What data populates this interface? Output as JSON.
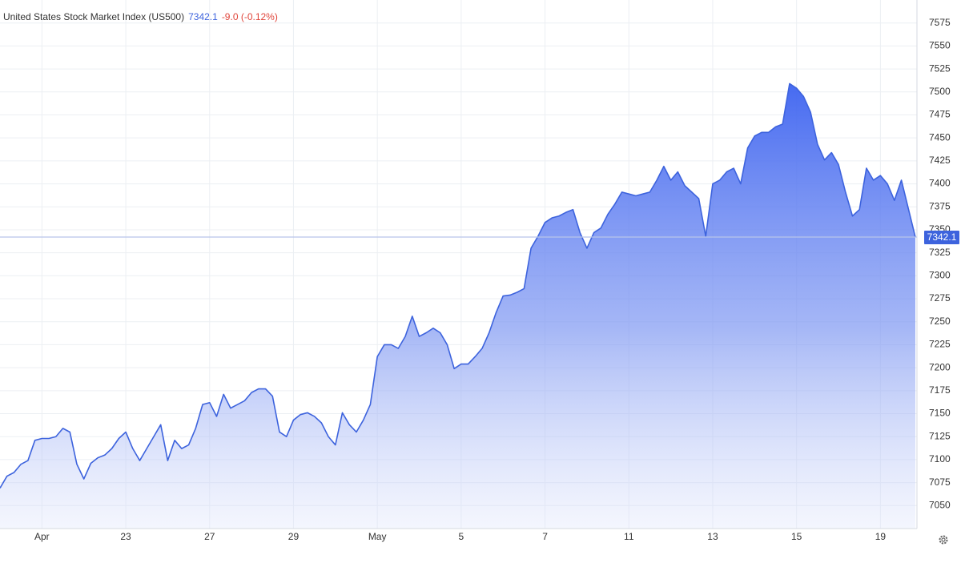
{
  "chart_data": {
    "type": "area",
    "title": "United States Stock Market Index (US500)",
    "last": 7342.1,
    "change": "-9.0 (-0.12%)",
    "color": "#3d63dd",
    "categories": [
      null,
      null,
      null,
      null,
      null,
      null,
      "Apr",
      null,
      null,
      null,
      null,
      null,
      null,
      null,
      null,
      null,
      null,
      null,
      "23",
      null,
      null,
      null,
      null,
      null,
      null,
      null,
      null,
      null,
      null,
      null,
      "27",
      null,
      null,
      null,
      null,
      null,
      null,
      null,
      null,
      null,
      null,
      null,
      "29",
      null,
      null,
      null,
      null,
      null,
      null,
      null,
      null,
      null,
      null,
      null,
      "May",
      null,
      null,
      null,
      null,
      null,
      null,
      null,
      null,
      null,
      null,
      null,
      "5",
      null,
      null,
      null,
      null,
      null,
      null,
      null,
      null,
      null,
      null,
      null,
      "7",
      null,
      null,
      null,
      null,
      null,
      null,
      null,
      null,
      null,
      null,
      null,
      "11",
      null,
      null,
      null,
      null,
      null,
      null,
      null,
      null,
      null,
      null,
      null,
      "13",
      null,
      null,
      null,
      null,
      null,
      null,
      null,
      null,
      null,
      null,
      null,
      "15",
      null,
      null,
      null,
      null,
      null,
      null,
      null,
      null,
      null,
      null,
      null,
      "19",
      null,
      null,
      null,
      null,
      null
    ],
    "values": [
      7069,
      7082,
      7086,
      7095,
      7099,
      7121,
      7123,
      7123,
      7125,
      7134,
      7130,
      7095,
      7079,
      7096,
      7102,
      7105,
      7112,
      7123,
      7130,
      7112,
      7099,
      7112,
      7125,
      7138,
      7099,
      7121,
      7112,
      7116,
      7134,
      7160,
      7162,
      7147,
      7171,
      7156,
      7160,
      7164,
      7173,
      7177,
      7177,
      7169,
      7130,
      7125,
      7143,
      7149,
      7151,
      7147,
      7140,
      7125,
      7116,
      7151,
      7138,
      7130,
      7143,
      7160,
      7212,
      7225,
      7225,
      7221,
      7234,
      7256,
      7234,
      7238,
      7243,
      7238,
      7225,
      7199,
      7204,
      7204,
      7212,
      7221,
      7238,
      7260,
      7278,
      7279,
      7282,
      7286,
      7330,
      7343,
      7358,
      7363,
      7365,
      7369,
      7372,
      7347,
      7330,
      7347,
      7352,
      7367,
      7378,
      7391,
      7389,
      7387,
      7389,
      7391,
      7404,
      7419,
      7404,
      7413,
      7398,
      7391,
      7384,
      7343,
      7400,
      7404,
      7413,
      7417,
      7400,
      7439,
      7452,
      7456,
      7456,
      7462,
      7465,
      7509,
      7504,
      7495,
      7478,
      7443,
      7426,
      7434,
      7421,
      7391,
      7365,
      7372,
      7417,
      7404,
      7409,
      7400,
      7382,
      7404,
      7373,
      7342
    ],
    "ylim": [
      7025,
      7600
    ],
    "yticks": [
      7050,
      7075,
      7100,
      7125,
      7150,
      7175,
      7200,
      7225,
      7250,
      7275,
      7300,
      7325,
      7350,
      7375,
      7400,
      7425,
      7450,
      7475,
      7500,
      7525,
      7550,
      7575
    ],
    "grid": true
  }
}
